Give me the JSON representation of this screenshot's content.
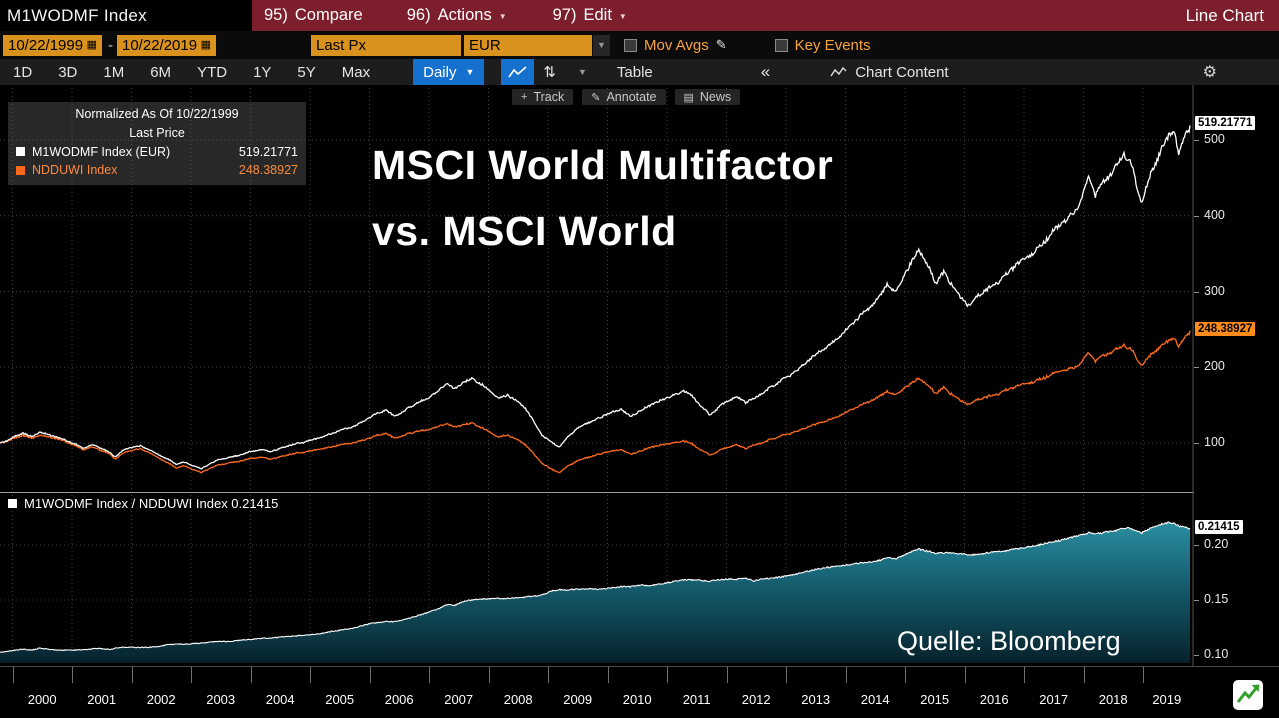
{
  "topbar": {
    "security": "M1WODMF Index",
    "menus": [
      {
        "num": "95)",
        "label": "Compare"
      },
      {
        "num": "96)",
        "label": "Actions"
      },
      {
        "num": "97)",
        "label": "Edit"
      }
    ],
    "right_label": "Line Chart"
  },
  "fieldbar": {
    "date_from": "10/22/1999",
    "separator": "-",
    "date_to": "10/22/2019",
    "price_field": "Last Px",
    "currency": "EUR",
    "mov_avgs_label": "Mov Avgs",
    "key_events_label": "Key Events"
  },
  "toolbar": {
    "ranges": [
      "1D",
      "3D",
      "1M",
      "6M",
      "YTD",
      "1Y",
      "5Y",
      "Max"
    ],
    "period": "Daily",
    "table_label": "Table",
    "collapse_label": "«",
    "chart_content_label": "Chart Content"
  },
  "overlay": {
    "track": "Track",
    "annotate": "Annotate",
    "news": "News"
  },
  "legend": {
    "line1": "Normalized As Of 10/22/1999",
    "line2": "Last Price",
    "series": [
      {
        "label": "M1WODMF Index (EUR)",
        "value": "519.21771"
      },
      {
        "label": "NDDUWI Index",
        "value": "248.38927"
      }
    ]
  },
  "title": {
    "line1": "MSCI World Multifactor",
    "line2": "vs. MSCI World"
  },
  "source_label": "Quelle: Bloomberg",
  "ratio_legend": "M1WODMF Index / NDDUWI Index 0.21415",
  "axis": {
    "main_badges": [
      "519.21771",
      "248.38927"
    ],
    "ratio_badge": "0.21415"
  },
  "icons": {
    "calendar": "▦",
    "caret": "▼",
    "pencil": "✎",
    "track": "+",
    "annotate": "✎",
    "news": "▤",
    "gear": "⚙",
    "sort": "⇅"
  },
  "colors": {
    "menubar_red": "#7c1e2c",
    "amber_field": "#da921e",
    "amber_text": "#f9a43a",
    "blue_button": "#1571cd",
    "series_white": "#ffffff",
    "series_orange": "#ff6a1c",
    "badge_orange": "#ff8c1a",
    "ratio_fill_top": "#2b8ea1",
    "ratio_fill_mid": "#176476",
    "ratio_fill_bottom": "#06222c",
    "grid": "#414141"
  },
  "chart_data": {
    "type": "line",
    "title": "MSCI World Multifactor vs. MSCI World",
    "normalized_as_of": "10/22/1999",
    "x_domain_years": [
      1999.79,
      2019.79
    ],
    "x_tick_years": [
      2000,
      2001,
      2002,
      2003,
      2004,
      2005,
      2006,
      2007,
      2008,
      2009,
      2010,
      2011,
      2012,
      2013,
      2014,
      2015,
      2016,
      2017,
      2018,
      2019
    ],
    "main_panel": {
      "yticks": [
        100,
        200,
        300,
        400,
        500
      ],
      "legend_position": "top-left",
      "grid": "dotted",
      "series": [
        {
          "name": "M1WODMF Index (EUR)",
          "color": "#ffffff",
          "last_price": 519.21771
        },
        {
          "name": "NDDUWI Index",
          "color": "#ff6a1c",
          "last_price": 248.38927
        }
      ]
    },
    "ratio_panel": {
      "name": "M1WODMF Index / NDDUWI Index",
      "type": "area",
      "last_value": 0.21415,
      "yticks": [
        0.1,
        0.15,
        0.2
      ],
      "base_factor": 0.10245
    },
    "t": [
      1999.79,
      1999.92,
      2000.05,
      2000.18,
      2000.32,
      2000.45,
      2000.6,
      2000.75,
      2000.9,
      2001.05,
      2001.2,
      2001.35,
      2001.5,
      2001.65,
      2001.73,
      2001.85,
      2002.0,
      2002.15,
      2002.3,
      2002.45,
      2002.6,
      2002.75,
      2002.88,
      2003.02,
      2003.18,
      2003.33,
      2003.48,
      2003.63,
      2003.8,
      2004.0,
      2004.18,
      2004.33,
      2004.5,
      2004.68,
      2004.85,
      2005.0,
      2005.15,
      2005.32,
      2005.5,
      2005.68,
      2005.85,
      2006.0,
      2006.15,
      2006.28,
      2006.42,
      2006.58,
      2006.75,
      2006.92,
      2007.05,
      2007.18,
      2007.3,
      2007.43,
      2007.57,
      2007.72,
      2007.88,
      2008.02,
      2008.17,
      2008.32,
      2008.47,
      2008.62,
      2008.77,
      2008.9,
      2009.05,
      2009.2,
      2009.33,
      2009.47,
      2009.62,
      2009.78,
      2009.93,
      2010.08,
      2010.23,
      2010.38,
      2010.53,
      2010.68,
      2010.85,
      2011.0,
      2011.15,
      2011.28,
      2011.42,
      2011.57,
      2011.72,
      2011.87,
      2012.02,
      2012.17,
      2012.32,
      2012.47,
      2012.62,
      2012.77,
      2012.92,
      2013.07,
      2013.22,
      2013.37,
      2013.52,
      2013.67,
      2013.82,
      2013.97,
      2014.12,
      2014.27,
      2014.42,
      2014.57,
      2014.7,
      2014.83,
      2014.97,
      2015.1,
      2015.23,
      2015.38,
      2015.52,
      2015.65,
      2015.78,
      2015.93,
      2016.08,
      2016.23,
      2016.38,
      2016.53,
      2016.68,
      2016.83,
      2016.98,
      2017.13,
      2017.28,
      2017.43,
      2017.58,
      2017.73,
      2017.88,
      2018.02,
      2018.1,
      2018.2,
      2018.32,
      2018.45,
      2018.58,
      2018.68,
      2018.8,
      2018.9,
      2018.98,
      2019.1,
      2019.22,
      2019.33,
      2019.43,
      2019.52,
      2019.6,
      2019.68,
      2019.73,
      2019.79
    ],
    "m1wodmf_normalized": [
      100,
      103,
      109,
      113,
      109,
      114,
      111,
      107,
      104,
      99,
      93,
      97,
      93,
      87,
      82,
      90,
      94,
      96,
      92,
      85,
      79,
      72,
      75,
      71,
      66,
      73,
      78,
      81,
      84,
      88,
      91,
      89,
      93,
      97,
      100,
      104,
      107,
      111,
      116,
      121,
      127,
      133,
      139,
      144,
      136,
      142,
      150,
      157,
      164,
      171,
      178,
      170,
      180,
      186,
      178,
      168,
      158,
      164,
      156,
      146,
      126,
      110,
      102,
      95,
      107,
      117,
      125,
      131,
      136,
      140,
      144,
      136,
      142,
      148,
      154,
      160,
      165,
      169,
      161,
      149,
      137,
      148,
      155,
      160,
      154,
      160,
      167,
      174,
      182,
      190,
      199,
      208,
      217,
      226,
      236,
      246,
      257,
      269,
      281,
      294,
      310,
      296,
      318,
      338,
      358,
      334,
      310,
      324,
      312,
      294,
      280,
      293,
      303,
      312,
      321,
      331,
      341,
      351,
      362,
      373,
      384,
      396,
      410,
      436,
      452,
      424,
      441,
      456,
      469,
      484,
      468,
      436,
      416,
      450,
      474,
      492,
      505,
      513,
      479,
      498,
      509,
      519.22
    ],
    "ndduwi_normalized": [
      100,
      102,
      107,
      110,
      107,
      110,
      108,
      105,
      102,
      97,
      91,
      94,
      90,
      85,
      79,
      86,
      90,
      92,
      88,
      81,
      74,
      67,
      70,
      66,
      61,
      67,
      71,
      74,
      76,
      79,
      81,
      79,
      82,
      85,
      87,
      90,
      92,
      94,
      97,
      100,
      103,
      106,
      110,
      113,
      107,
      110,
      114,
      117,
      120,
      123,
      125,
      120,
      124,
      127,
      121,
      114,
      107,
      111,
      105,
      98,
      84,
      73,
      66,
      61,
      69,
      75,
      80,
      84,
      87,
      89,
      91,
      86,
      89,
      93,
      96,
      99,
      101,
      103,
      98,
      91,
      84,
      90,
      94,
      97,
      93,
      98,
      101,
      105,
      109,
      113,
      117,
      121,
      125,
      129,
      134,
      139,
      144,
      150,
      156,
      162,
      168,
      162,
      171,
      179,
      187,
      176,
      165,
      172,
      166,
      157,
      150,
      157,
      161,
      165,
      169,
      173,
      177,
      181,
      185,
      189,
      193,
      197,
      202,
      213,
      219,
      207,
      214,
      220,
      225,
      230,
      223,
      210,
      202,
      215,
      223,
      230,
      235,
      239,
      226,
      235,
      241,
      248.39
    ]
  }
}
